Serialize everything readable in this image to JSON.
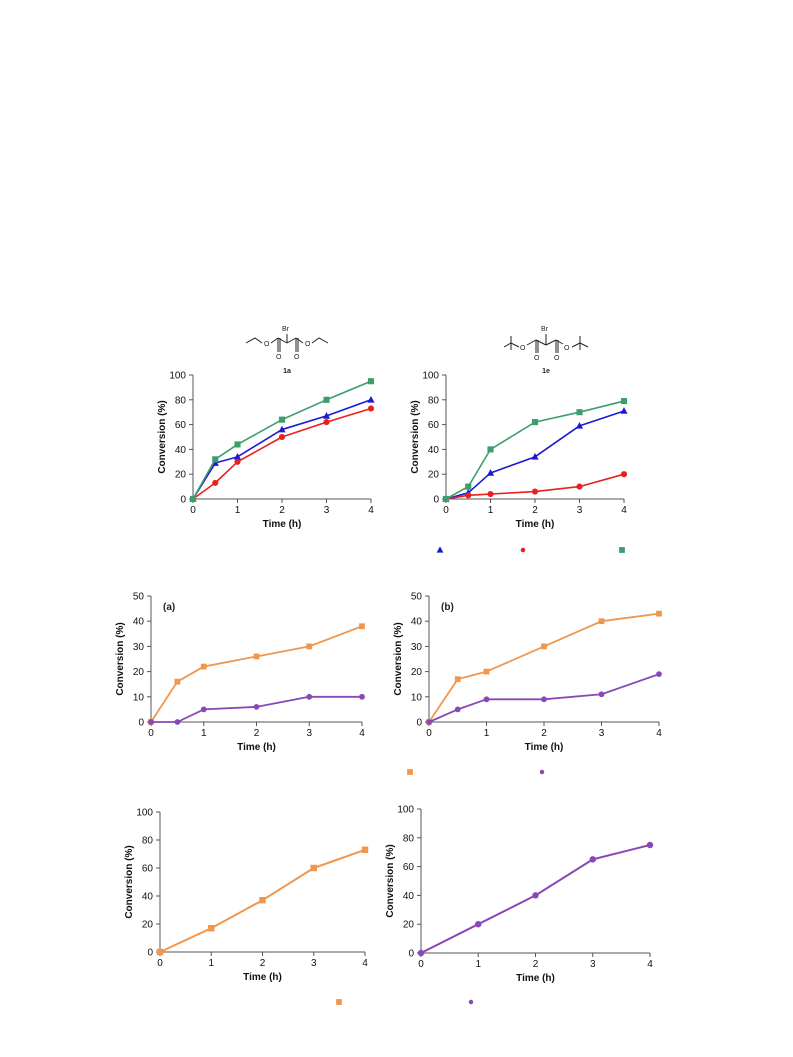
{
  "structures": [
    {
      "compound": "1a",
      "atoms": [
        "Br",
        "O",
        "O",
        "O",
        "O"
      ]
    },
    {
      "compound": "1e",
      "atoms": [
        "Br",
        "O",
        "O",
        "O",
        "O"
      ]
    }
  ],
  "colors": {
    "blue": "#1a1ad6",
    "red": "#e8201e",
    "green": "#3c9e6c",
    "orange": "#f0974d",
    "purple": "#8848b8"
  },
  "chart_data": [
    {
      "type": "line",
      "panel_label": "",
      "x": [
        0,
        0.5,
        1,
        2,
        3,
        4
      ],
      "xlim": [
        0,
        4
      ],
      "ylim": [
        0,
        100
      ],
      "xticks": [
        0,
        1,
        2,
        3,
        4
      ],
      "yticks": [
        0,
        20,
        40,
        60,
        80,
        100
      ],
      "xlabel": "Time (h)",
      "ylabel": "Conversion (%)",
      "series": [
        {
          "marker": "triangle",
          "color": "#1a1ad6",
          "values": [
            0,
            29,
            34,
            56,
            67,
            80
          ]
        },
        {
          "marker": "circle",
          "color": "#e8201e",
          "values": [
            0,
            13,
            30,
            50,
            62,
            73
          ]
        },
        {
          "marker": "square",
          "color": "#3c9e6c",
          "values": [
            0,
            32,
            44,
            64,
            80,
            95
          ]
        }
      ]
    },
    {
      "type": "line",
      "panel_label": "",
      "x": [
        0,
        0.5,
        1,
        2,
        3,
        4
      ],
      "xlim": [
        0,
        4
      ],
      "ylim": [
        0,
        100
      ],
      "xticks": [
        0,
        1,
        2,
        3,
        4
      ],
      "yticks": [
        0,
        20,
        40,
        60,
        80,
        100
      ],
      "xlabel": "Time (h)",
      "ylabel": "Conversion (%)",
      "series": [
        {
          "marker": "triangle",
          "color": "#1a1ad6",
          "values": [
            0,
            5,
            21,
            34,
            59,
            71
          ]
        },
        {
          "marker": "circle",
          "color": "#e8201e",
          "values": [
            0,
            3,
            4,
            6,
            10,
            20
          ]
        },
        {
          "marker": "square",
          "color": "#3c9e6c",
          "values": [
            0,
            10,
            40,
            62,
            70,
            79
          ]
        }
      ]
    },
    {
      "type": "line",
      "panel_label": "(a)",
      "x": [
        0,
        0.5,
        1,
        2,
        3,
        4
      ],
      "xlim": [
        0,
        4
      ],
      "ylim": [
        0,
        50
      ],
      "xticks": [
        0,
        1,
        2,
        3,
        4
      ],
      "yticks": [
        0,
        10,
        20,
        30,
        40,
        50
      ],
      "xlabel": "Time (h)",
      "ylabel": "Conversion (%)",
      "series": [
        {
          "marker": "square",
          "color": "#f0974d",
          "values": [
            0,
            16,
            22,
            26,
            30,
            38
          ]
        },
        {
          "marker": "circle",
          "color": "#8848b8",
          "values": [
            0,
            0,
            5,
            6,
            10,
            10
          ]
        }
      ]
    },
    {
      "type": "line",
      "panel_label": "(b)",
      "x": [
        0,
        0.5,
        1,
        2,
        3,
        4
      ],
      "xlim": [
        0,
        4
      ],
      "ylim": [
        0,
        50
      ],
      "xticks": [
        0,
        1,
        2,
        3,
        4
      ],
      "yticks": [
        0,
        10,
        20,
        30,
        40,
        50
      ],
      "xlabel": "Time (h)",
      "ylabel": "Conversion (%)",
      "series": [
        {
          "marker": "square",
          "color": "#f0974d",
          "values": [
            0,
            17,
            20,
            30,
            40,
            43
          ]
        },
        {
          "marker": "circle",
          "color": "#8848b8",
          "values": [
            0,
            5,
            9,
            9,
            11,
            19
          ]
        }
      ]
    },
    {
      "type": "line",
      "panel_label": "",
      "x": [
        0,
        1,
        2,
        3,
        4
      ],
      "xlim": [
        0,
        4
      ],
      "ylim": [
        0,
        100
      ],
      "xticks": [
        0,
        1,
        2,
        3,
        4
      ],
      "yticks": [
        0,
        20,
        40,
        60,
        80,
        100
      ],
      "xlabel": "Time (h)",
      "ylabel": "Conversion (%)",
      "series": [
        {
          "marker": "square",
          "color": "#f0974d",
          "values": [
            0,
            17,
            37,
            60,
            73
          ]
        }
      ]
    },
    {
      "type": "line",
      "panel_label": "",
      "x": [
        0,
        1,
        2,
        3,
        4
      ],
      "xlim": [
        0,
        4
      ],
      "ylim": [
        0,
        100
      ],
      "xticks": [
        0,
        1,
        2,
        3,
        4
      ],
      "yticks": [
        0,
        20,
        40,
        60,
        80,
        100
      ],
      "xlabel": "Time (h)",
      "ylabel": "Conversion (%)",
      "series": [
        {
          "marker": "circle",
          "color": "#8848b8",
          "values": [
            0,
            20,
            40,
            65,
            75
          ]
        }
      ]
    }
  ],
  "legends": [
    [
      {
        "marker": "triangle",
        "color": "#1a1ad6"
      },
      {
        "marker": "circle",
        "color": "#e8201e"
      },
      {
        "marker": "square",
        "color": "#3c9e6c"
      }
    ],
    [
      {
        "marker": "square",
        "color": "#f0974d"
      },
      {
        "marker": "circle",
        "color": "#8848b8"
      }
    ],
    [
      {
        "marker": "square",
        "color": "#f0974d"
      },
      {
        "marker": "circle",
        "color": "#8848b8"
      }
    ]
  ]
}
